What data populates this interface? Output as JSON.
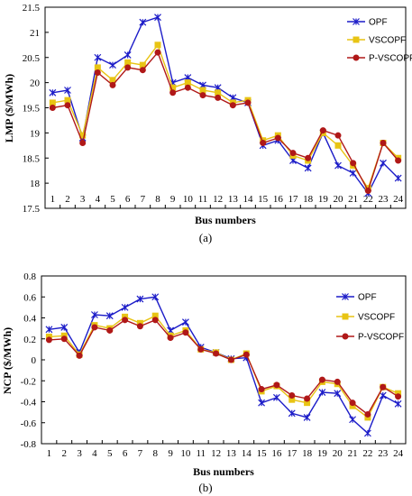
{
  "chart_data": [
    {
      "type": "line",
      "panel_label": "(a)",
      "xlabel": "Bus numbers",
      "ylabel": "LMP ($/MWh)",
      "x": [
        1,
        2,
        3,
        4,
        5,
        6,
        7,
        8,
        9,
        10,
        11,
        12,
        13,
        14,
        15,
        16,
        17,
        18,
        19,
        20,
        21,
        22,
        23,
        24
      ],
      "ylim": [
        17.5,
        21.5
      ],
      "yticks": [
        "17.5",
        "18",
        "18.5",
        "19",
        "19.5",
        "20",
        "20.5",
        "21",
        "21.5"
      ],
      "grid": false,
      "legend": "top-right",
      "series": [
        {
          "name": "OPF",
          "color": "#1c1cc8",
          "marker": "star",
          "values": [
            19.8,
            19.85,
            18.9,
            20.5,
            20.35,
            20.55,
            21.2,
            21.3,
            20.0,
            20.1,
            19.95,
            19.9,
            19.7,
            19.6,
            18.75,
            18.85,
            18.45,
            18.3,
            19.0,
            18.35,
            18.2,
            17.8,
            18.4,
            18.1
          ]
        },
        {
          "name": "VSCOPF",
          "color": "#e8c414",
          "marker": "square",
          "values": [
            19.6,
            19.65,
            18.95,
            20.3,
            20.05,
            20.4,
            20.35,
            20.75,
            19.9,
            20.0,
            19.85,
            19.8,
            19.6,
            19.65,
            18.85,
            18.95,
            18.55,
            18.45,
            19.0,
            18.75,
            18.35,
            17.9,
            18.8,
            18.5
          ]
        },
        {
          "name": "P-VSCOPF",
          "color": "#b01818",
          "marker": "circle",
          "values": [
            19.5,
            19.55,
            18.8,
            20.2,
            19.95,
            20.3,
            20.25,
            20.6,
            19.8,
            19.9,
            19.75,
            19.7,
            19.55,
            19.6,
            18.8,
            18.9,
            18.6,
            18.5,
            19.05,
            18.95,
            18.4,
            17.85,
            18.8,
            18.45
          ]
        }
      ]
    },
    {
      "type": "line",
      "panel_label": "(b)",
      "xlabel": "Bus numbers",
      "ylabel": "NCP ($/MWh)",
      "x": [
        1,
        2,
        3,
        4,
        5,
        6,
        7,
        8,
        9,
        10,
        11,
        12,
        13,
        14,
        15,
        16,
        17,
        18,
        19,
        20,
        21,
        22,
        23,
        24
      ],
      "ylim": [
        -0.8,
        0.8
      ],
      "yticks": [
        "-0.8",
        "-0.6",
        "-0.4",
        "-0.2",
        "0",
        "0.2",
        "0.4",
        "0.6",
        "0.8"
      ],
      "grid": false,
      "legend": "top-right",
      "series": [
        {
          "name": "OPF",
          "color": "#1c1cc8",
          "marker": "star",
          "values": [
            0.29,
            0.31,
            0.07,
            0.43,
            0.42,
            0.5,
            0.58,
            0.6,
            0.28,
            0.36,
            0.12,
            0.07,
            0.01,
            0.02,
            -0.41,
            -0.36,
            -0.51,
            -0.55,
            -0.31,
            -0.32,
            -0.57,
            -0.7,
            -0.34,
            -0.42
          ]
        },
        {
          "name": "VSCOPF",
          "color": "#e8c414",
          "marker": "square",
          "values": [
            0.22,
            0.23,
            0.05,
            0.33,
            0.3,
            0.41,
            0.35,
            0.42,
            0.23,
            0.28,
            0.1,
            0.07,
            0.0,
            0.06,
            -0.3,
            -0.25,
            -0.38,
            -0.41,
            -0.21,
            -0.23,
            -0.44,
            -0.55,
            -0.26,
            -0.32
          ]
        },
        {
          "name": "P-VSCOPF",
          "color": "#b01818",
          "marker": "circle",
          "values": [
            0.19,
            0.2,
            0.04,
            0.31,
            0.28,
            0.38,
            0.32,
            0.38,
            0.21,
            0.26,
            0.1,
            0.06,
            0.0,
            0.05,
            -0.28,
            -0.24,
            -0.34,
            -0.37,
            -0.19,
            -0.21,
            -0.41,
            -0.52,
            -0.26,
            -0.35
          ]
        }
      ]
    }
  ]
}
